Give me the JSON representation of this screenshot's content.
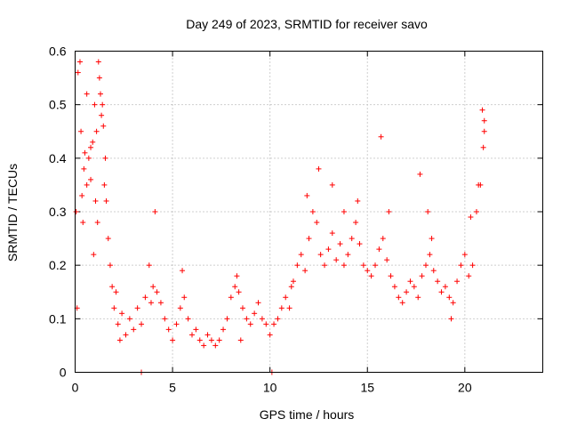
{
  "chart_data": {
    "type": "scatter",
    "title": "Day 249 of 2023, SRMTID for receiver savo",
    "xlabel": "GPS time / hours",
    "ylabel": "SRMTID / TECUs",
    "xlim": [
      0,
      24
    ],
    "ylim": [
      0,
      0.6
    ],
    "xticks": [
      0,
      5,
      10,
      15,
      20
    ],
    "yticks": [
      0,
      0.1,
      0.2,
      0.3,
      0.4,
      0.5,
      0.6
    ],
    "grid": true,
    "marker": "+",
    "color": "#ff0000",
    "series": [
      {
        "name": "SRMTID",
        "x": [
          0.05,
          0.15,
          0.25,
          0.35,
          0.45,
          0.5,
          0.6,
          0.7,
          0.8,
          0.9,
          1.0,
          1.1,
          1.2,
          1.3,
          1.4,
          1.5,
          1.6,
          1.7,
          1.8,
          1.9,
          2.0,
          2.2,
          2.4,
          2.6,
          2.8,
          3.0,
          3.2,
          3.4,
          3.6,
          3.8,
          4.0,
          4.2,
          4.4,
          4.6,
          4.8,
          5.0,
          5.2,
          5.4,
          5.6,
          5.8,
          6.0,
          6.2,
          6.4,
          6.6,
          6.8,
          7.0,
          7.2,
          7.4,
          7.6,
          7.8,
          8.0,
          8.2,
          8.4,
          8.6,
          8.8,
          9.0,
          9.2,
          9.4,
          9.6,
          9.8,
          10.0,
          10.2,
          10.4,
          10.6,
          10.8,
          11.0,
          11.2,
          11.4,
          11.6,
          11.8,
          12.0,
          12.2,
          12.4,
          12.6,
          12.8,
          13.0,
          13.2,
          13.4,
          13.6,
          13.8,
          14.0,
          14.2,
          14.4,
          14.6,
          14.8,
          15.0,
          15.2,
          15.4,
          15.6,
          15.8,
          16.0,
          16.2,
          16.4,
          16.6,
          16.8,
          17.0,
          17.2,
          17.4,
          17.6,
          17.8,
          18.0,
          18.2,
          18.4,
          18.6,
          18.8,
          19.0,
          19.2,
          19.4,
          19.6,
          19.8,
          20.0,
          20.2,
          20.4,
          20.6,
          20.8,
          21.0,
          0.1,
          0.3,
          0.4,
          0.6,
          0.8,
          1.05,
          1.25,
          1.35,
          1.45,
          1.55,
          1.15,
          0.95,
          2.1,
          2.3,
          3.9,
          4.1,
          5.5,
          8.3,
          8.5,
          11.1,
          11.9,
          12.5,
          13.2,
          13.8,
          14.5,
          15.7,
          16.1,
          17.7,
          18.1,
          18.3,
          19.3,
          20.3,
          20.7,
          20.9,
          21.0,
          20.95,
          3.4,
          10.1
        ],
        "y": [
          0.3,
          0.56,
          0.58,
          0.33,
          0.38,
          0.41,
          0.35,
          0.4,
          0.42,
          0.43,
          0.5,
          0.45,
          0.58,
          0.52,
          0.5,
          0.35,
          0.32,
          0.25,
          0.2,
          0.16,
          0.12,
          0.09,
          0.11,
          0.07,
          0.1,
          0.08,
          0.12,
          0.09,
          0.14,
          0.2,
          0.16,
          0.15,
          0.13,
          0.1,
          0.08,
          0.06,
          0.09,
          0.12,
          0.14,
          0.1,
          0.07,
          0.08,
          0.06,
          0.05,
          0.07,
          0.06,
          0.05,
          0.06,
          0.08,
          0.1,
          0.14,
          0.16,
          0.15,
          0.12,
          0.1,
          0.09,
          0.11,
          0.13,
          0.1,
          0.09,
          0.07,
          0.09,
          0.1,
          0.12,
          0.14,
          0.12,
          0.17,
          0.2,
          0.22,
          0.19,
          0.25,
          0.3,
          0.28,
          0.22,
          0.2,
          0.23,
          0.26,
          0.21,
          0.24,
          0.2,
          0.22,
          0.25,
          0.28,
          0.24,
          0.2,
          0.19,
          0.18,
          0.2,
          0.23,
          0.25,
          0.21,
          0.18,
          0.16,
          0.14,
          0.13,
          0.15,
          0.17,
          0.16,
          0.14,
          0.18,
          0.2,
          0.22,
          0.19,
          0.17,
          0.15,
          0.16,
          0.14,
          0.13,
          0.17,
          0.2,
          0.22,
          0.18,
          0.2,
          0.3,
          0.35,
          0.45,
          0.12,
          0.45,
          0.28,
          0.52,
          0.36,
          0.32,
          0.55,
          0.48,
          0.46,
          0.4,
          0.28,
          0.22,
          0.15,
          0.06,
          0.13,
          0.3,
          0.19,
          0.18,
          0.06,
          0.16,
          0.33,
          0.38,
          0.35,
          0.3,
          0.32,
          0.44,
          0.3,
          0.37,
          0.3,
          0.25,
          0.1,
          0.29,
          0.35,
          0.49,
          0.47,
          0.42,
          0.0,
          0.0
        ]
      }
    ]
  }
}
